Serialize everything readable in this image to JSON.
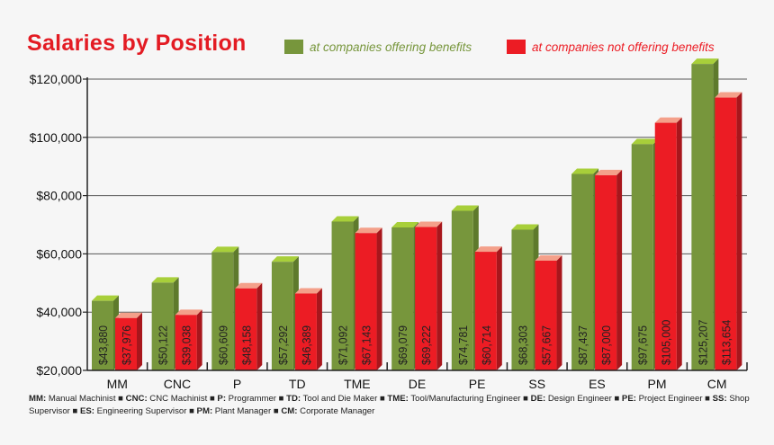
{
  "chart_data": {
    "type": "bar",
    "title": "Salaries by Position",
    "categories": [
      "MM",
      "CNC",
      "P",
      "TD",
      "TME",
      "DE",
      "PE",
      "SS",
      "ES",
      "PM",
      "CM"
    ],
    "series": [
      {
        "name": "at companies offering benefits",
        "color": "#77963c",
        "top_color": "#a8cf3a",
        "values": [
          43880,
          50122,
          60609,
          57292,
          71092,
          69079,
          74781,
          68303,
          87437,
          97675,
          125207
        ],
        "labels": [
          "$43,880",
          "$50,122",
          "$60,609",
          "$57,292",
          "$71,092",
          "$69,079",
          "$74,781",
          "$68,303",
          "$87,437",
          "$97,675",
          "$125,207"
        ]
      },
      {
        "name": "at companies not offering benefits",
        "color": "#ec1c24",
        "top_color": "#f4a08a",
        "values": [
          37976,
          39038,
          48158,
          46389,
          67143,
          69222,
          60714,
          57667,
          87000,
          105000,
          113654
        ],
        "labels": [
          "$37,976",
          "$39,038",
          "$48,158",
          "$46,389",
          "$67,143",
          "$69,222",
          "$60,714",
          "$57,667",
          "$87,000",
          "$105,000",
          "$113,654"
        ]
      }
    ],
    "ylim": [
      20000,
      120000
    ],
    "yticks": [
      20000,
      40000,
      60000,
      80000,
      100000,
      120000
    ],
    "ytick_labels": [
      "$20,000",
      "$40,000",
      "$60,000",
      "$80,000",
      "$100,000",
      "$120,000"
    ],
    "grid": true,
    "legend_placement": "top-right"
  },
  "footnote": [
    {
      "abbr": "MM:",
      "name": "Manual Machinist"
    },
    {
      "abbr": "CNC:",
      "name": "CNC Machinist"
    },
    {
      "abbr": "P:",
      "name": "Programmer"
    },
    {
      "abbr": "TD:",
      "name": "Tool and Die Maker"
    },
    {
      "abbr": "TME:",
      "name": "Tool/Manufacturing Engineer"
    },
    {
      "abbr": "DE:",
      "name": "Design Engineer"
    },
    {
      "abbr": "PE:",
      "name": "Project Engineer"
    },
    {
      "abbr": "SS:",
      "name": "Shop Supervisor"
    },
    {
      "abbr": "ES:",
      "name": "Engineering Supervisor"
    },
    {
      "abbr": "PM:",
      "name": "Plant Manager"
    },
    {
      "abbr": "CM:",
      "name": "Corporate Manager"
    }
  ]
}
